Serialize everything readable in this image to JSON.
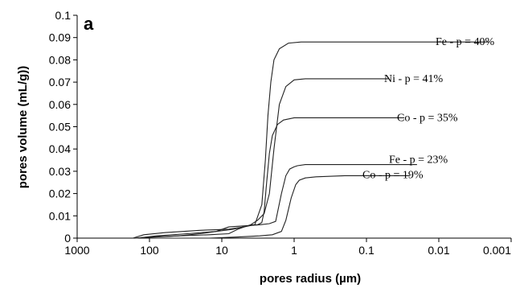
{
  "chart_data": {
    "type": "line",
    "panel_label": "a",
    "xlabel": "pores radius (µm)",
    "ylabel": "pores volume (mL/g))",
    "x_scale": "log",
    "x_reversed": true,
    "xlim": [
      1000,
      0.001
    ],
    "ylim": [
      0,
      0.1
    ],
    "x_ticks": [
      1000,
      100,
      10,
      1,
      0.1,
      0.01,
      0.001
    ],
    "x_tick_labels": [
      "1000",
      "100",
      "10",
      "1",
      "0.1",
      "0.01",
      "0.001"
    ],
    "y_ticks": [
      0,
      0.01,
      0.02,
      0.03,
      0.04,
      0.05,
      0.06,
      0.07,
      0.08,
      0.09,
      0.1
    ],
    "y_tick_labels": [
      "0",
      "0.01",
      "0.02",
      "0.03",
      "0.04",
      "0.05",
      "0.06",
      "0.07",
      "0.08",
      "0.09",
      "0.1"
    ],
    "grid": false,
    "line_color": "#222222",
    "series": [
      {
        "name": "Fe - p = 40%",
        "x": [
          170,
          120,
          60,
          20,
          8,
          5,
          3.5,
          2.8,
          2.5,
          2.3,
          2.1,
          1.9,
          1.6,
          1.2,
          0.8,
          0.3,
          0.01,
          0.002
        ],
        "y": [
          0,
          0.0015,
          0.0025,
          0.0035,
          0.004,
          0.005,
          0.006,
          0.015,
          0.035,
          0.055,
          0.07,
          0.08,
          0.085,
          0.0875,
          0.088,
          0.088,
          0.088,
          0.088
        ]
      },
      {
        "name": "Ni - p = 41%",
        "x": [
          160,
          100,
          40,
          15,
          8,
          6,
          4,
          3.2,
          2.6,
          2.2,
          1.9,
          1.6,
          1.3,
          1.0,
          0.7,
          0.3,
          0.1,
          0.05
        ],
        "y": [
          0,
          0.0005,
          0.001,
          0.0015,
          0.002,
          0.004,
          0.006,
          0.008,
          0.011,
          0.02,
          0.04,
          0.06,
          0.068,
          0.071,
          0.0715,
          0.0715,
          0.0715,
          0.0715
        ]
      },
      {
        "name": "Co - p = 35%",
        "x": [
          150,
          80,
          30,
          12,
          7,
          5,
          3.8,
          3.2,
          2.8,
          2.6,
          2.4,
          2.2,
          2.0,
          1.7,
          1.4,
          1.0,
          0.5,
          0.03
        ],
        "y": [
          0,
          0.001,
          0.002,
          0.003,
          0.004,
          0.005,
          0.006,
          0.006,
          0.007,
          0.012,
          0.025,
          0.038,
          0.046,
          0.051,
          0.053,
          0.054,
          0.054,
          0.054
        ]
      },
      {
        "name": "Fe - p = 23%",
        "x": [
          150,
          80,
          40,
          20,
          12,
          8,
          5,
          3,
          2.2,
          1.8,
          1.5,
          1.3,
          1.15,
          1.0,
          0.9,
          0.7,
          0.5,
          0.15,
          0.02
        ],
        "y": [
          0,
          0.0005,
          0.001,
          0.002,
          0.003,
          0.005,
          0.0055,
          0.006,
          0.0065,
          0.0075,
          0.02,
          0.028,
          0.031,
          0.032,
          0.0325,
          0.033,
          0.033,
          0.033,
          0.033
        ]
      },
      {
        "name": "Co - p = 19%",
        "x": [
          100,
          40,
          15,
          6,
          3,
          2,
          1.5,
          1.3,
          1.1,
          0.95,
          0.85,
          0.7,
          0.5,
          0.2,
          0.025
        ],
        "y": [
          0,
          0,
          0,
          0.0005,
          0.001,
          0.0015,
          0.003,
          0.008,
          0.018,
          0.024,
          0.026,
          0.027,
          0.0275,
          0.028,
          0.028
        ]
      }
    ]
  }
}
